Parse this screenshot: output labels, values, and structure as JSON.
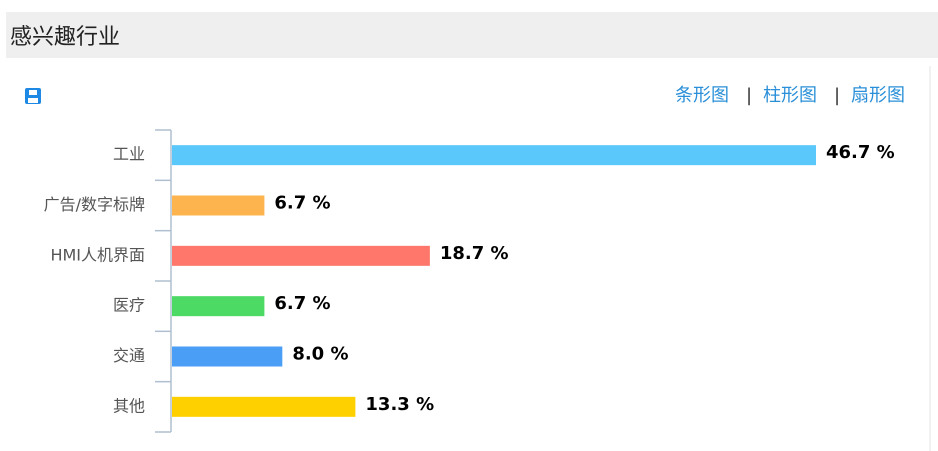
{
  "header": {
    "title": "感兴趣行业"
  },
  "toolbar": {
    "links": [
      "条形图",
      "柱形图",
      "扇形图"
    ],
    "separators": [
      "|",
      "|"
    ]
  },
  "chart_data": {
    "type": "hbar",
    "categories": [
      "工业",
      "广告/数字标牌",
      "HMI人机界面",
      "医疗",
      "交通",
      "其他"
    ],
    "values": [
      46.7,
      6.7,
      18.7,
      6.7,
      8.0,
      13.3
    ],
    "value_labels": [
      "46.7 %",
      "6.7 %",
      "18.7 %",
      "6.7 %",
      "8.0 %",
      "13.3 %"
    ],
    "colors": [
      "#5ac8fa",
      "#fdb44f",
      "#ff776a",
      "#4cd964",
      "#4a9ef5",
      "#ffd000"
    ]
  }
}
